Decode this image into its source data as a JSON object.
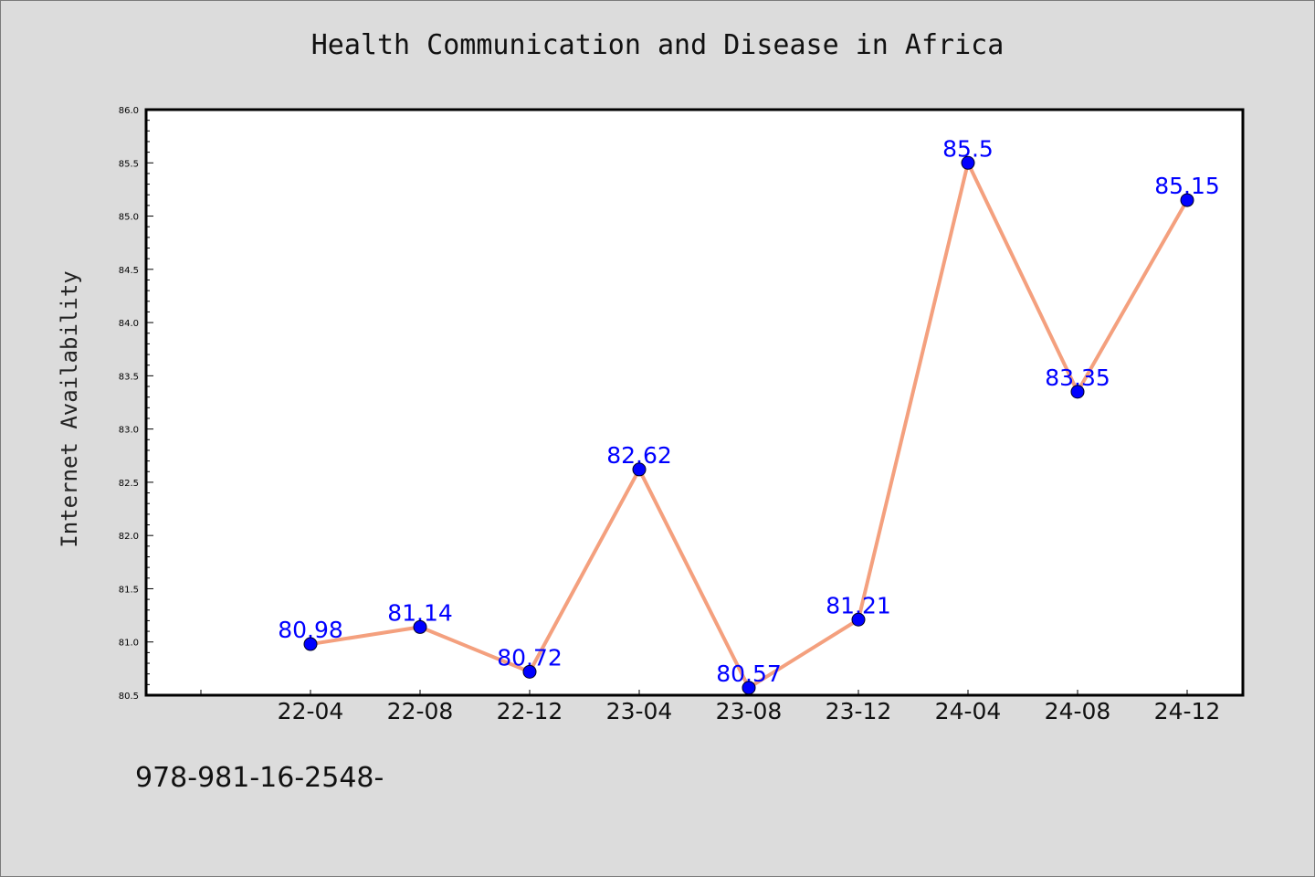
{
  "chart_data": {
    "type": "line",
    "title": "Health Communication and Disease in Africa",
    "xlabel": "",
    "ylabel": "Internet Availability",
    "categories": [
      "22-04",
      "22-08",
      "22-12",
      "23-04",
      "23-08",
      "23-12",
      "24-04",
      "24-08",
      "24-12"
    ],
    "values": [
      80.98,
      81.14,
      80.72,
      82.62,
      80.57,
      81.21,
      85.5,
      83.35,
      85.15
    ],
    "data_labels": [
      "80.98",
      "81.14",
      "80.72",
      "82.62",
      "80.57",
      "81.21",
      "85.5",
      "83.35",
      "85.15"
    ],
    "ylim": [
      80.5,
      86.0
    ],
    "yticks": [
      "80.5",
      "81.0",
      "81.5",
      "82.0",
      "82.5",
      "83.0",
      "83.5",
      "84.0",
      "84.5",
      "85.0",
      "85.5",
      "86.0"
    ],
    "grid": false,
    "line_color": "#f4a07e",
    "marker_color": "#0000ff",
    "label_color": "#0000ff"
  },
  "footnote": "978-981-16-2548-"
}
